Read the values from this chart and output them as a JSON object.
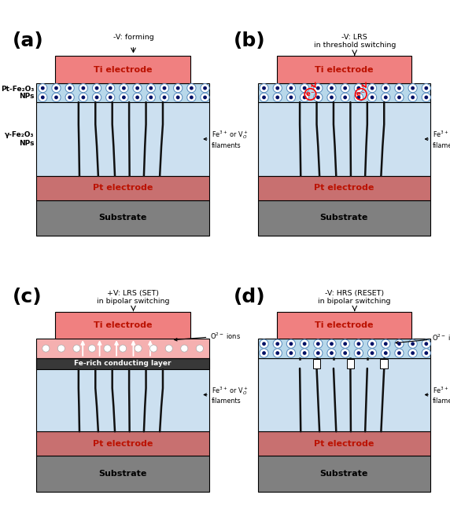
{
  "bg_color": "#ffffff",
  "panels": [
    {
      "label": "(a)",
      "title_line1": "-V: forming",
      "title_line2": "",
      "has_nps_top": true,
      "has_dark_layer": false,
      "has_electrons": false,
      "has_o2_ions_up": false,
      "has_o2_ions_broken": false,
      "filaments_broken": false,
      "left_labels": [
        "Pt-Fe₂O₃",
        "NPs",
        "γ-Fe₂O₃",
        "NPs"
      ]
    },
    {
      "label": "(b)",
      "title_line1": "-V: LRS",
      "title_line2": "in threshold switching",
      "has_nps_top": true,
      "has_dark_layer": false,
      "has_electrons": true,
      "has_o2_ions_up": false,
      "has_o2_ions_broken": false,
      "filaments_broken": false,
      "left_labels": []
    },
    {
      "label": "(c)",
      "title_line1": "+V: LRS (SET)",
      "title_line2": "in bipolar switching",
      "has_nps_top": false,
      "has_dark_layer": true,
      "has_electrons": false,
      "has_o2_ions_up": true,
      "has_o2_ions_broken": false,
      "filaments_broken": false,
      "left_labels": []
    },
    {
      "label": "(d)",
      "title_line1": "-V: HRS (RESET)",
      "title_line2": "in bipolar switching",
      "has_nps_top": true,
      "has_dark_layer": false,
      "has_electrons": false,
      "has_o2_ions_up": false,
      "has_o2_ions_broken": true,
      "filaments_broken": true,
      "left_labels": []
    }
  ],
  "colors": {
    "ti_electrode": "#f08080",
    "pt_electrode": "#c87070",
    "substrate": "#808080",
    "nps_bg": "#b8d8ea",
    "dot_outer": "#5588bb",
    "dot_inner": "#001166",
    "fe_layer": "#cce0f0",
    "filament": "#111111",
    "dark_layer": "#383838",
    "ion_sphere": "#f5f5f5",
    "electron_red": "#cc0000"
  }
}
